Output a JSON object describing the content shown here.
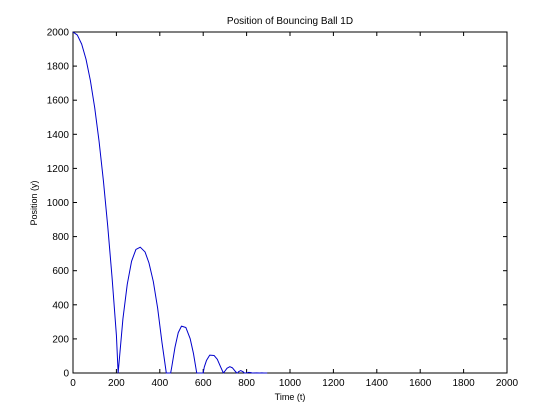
{
  "chart_data": {
    "type": "line",
    "title": "Position of Bouncing Ball 1D",
    "xlabel": "Time (t)",
    "ylabel": "Position  (y)",
    "xlim": [
      0,
      2000
    ],
    "ylim": [
      0,
      2000
    ],
    "x_ticks": [
      0,
      200,
      400,
      600,
      800,
      1000,
      1200,
      1400,
      1600,
      1800,
      2000
    ],
    "y_ticks": [
      0,
      200,
      400,
      600,
      800,
      1000,
      1200,
      1400,
      1600,
      1800,
      2000
    ],
    "x_tick_labels": [
      "0",
      "200",
      "400",
      "600",
      "800",
      "1000",
      "1200",
      "1400",
      "1600",
      "1800",
      "2000"
    ],
    "y_tick_labels": [
      "0",
      "200",
      "400",
      "600",
      "800",
      "1000",
      "1200",
      "1400",
      "1600",
      "1800",
      "2000"
    ],
    "grid": false,
    "colors": {
      "series": "#0000cc",
      "axes": "#000000",
      "background": "#ffffff"
    },
    "series": [
      {
        "x": [
          0,
          20,
          40,
          60,
          80,
          100,
          120,
          140,
          160,
          180,
          200,
          208,
          230,
          250,
          270,
          290,
          310,
          332,
          350,
          370,
          390,
          410,
          430,
          450,
          455,
          470,
          485,
          500,
          520,
          540,
          555,
          570,
          585,
          600,
          605,
          615,
          630,
          650,
          665,
          680,
          693,
          700,
          710,
          723,
          735,
          745,
          755,
          758,
          763,
          773,
          783,
          790,
          795,
          800,
          810,
          820,
          825,
          830,
          845,
          860,
          870,
          880,
          890,
          895
        ],
        "y": [
          2000,
          1982,
          1929,
          1840,
          1716,
          1556,
          1360,
          1129,
          862,
          560,
          222,
          0,
          317,
          520,
          656,
          725,
          738,
          710,
          646,
          537,
          381,
          179,
          0,
          0,
          35,
          151,
          237,
          275,
          267,
          201,
          115,
          1,
          0,
          0,
          35,
          73,
          105,
          103,
          80,
          36,
          0,
          11,
          28,
          37,
          30,
          14,
          0,
          0,
          8,
          14,
          8,
          0,
          0,
          0,
          4,
          2,
          0,
          0,
          1,
          0,
          1,
          0,
          0,
          0
        ]
      }
    ]
  }
}
